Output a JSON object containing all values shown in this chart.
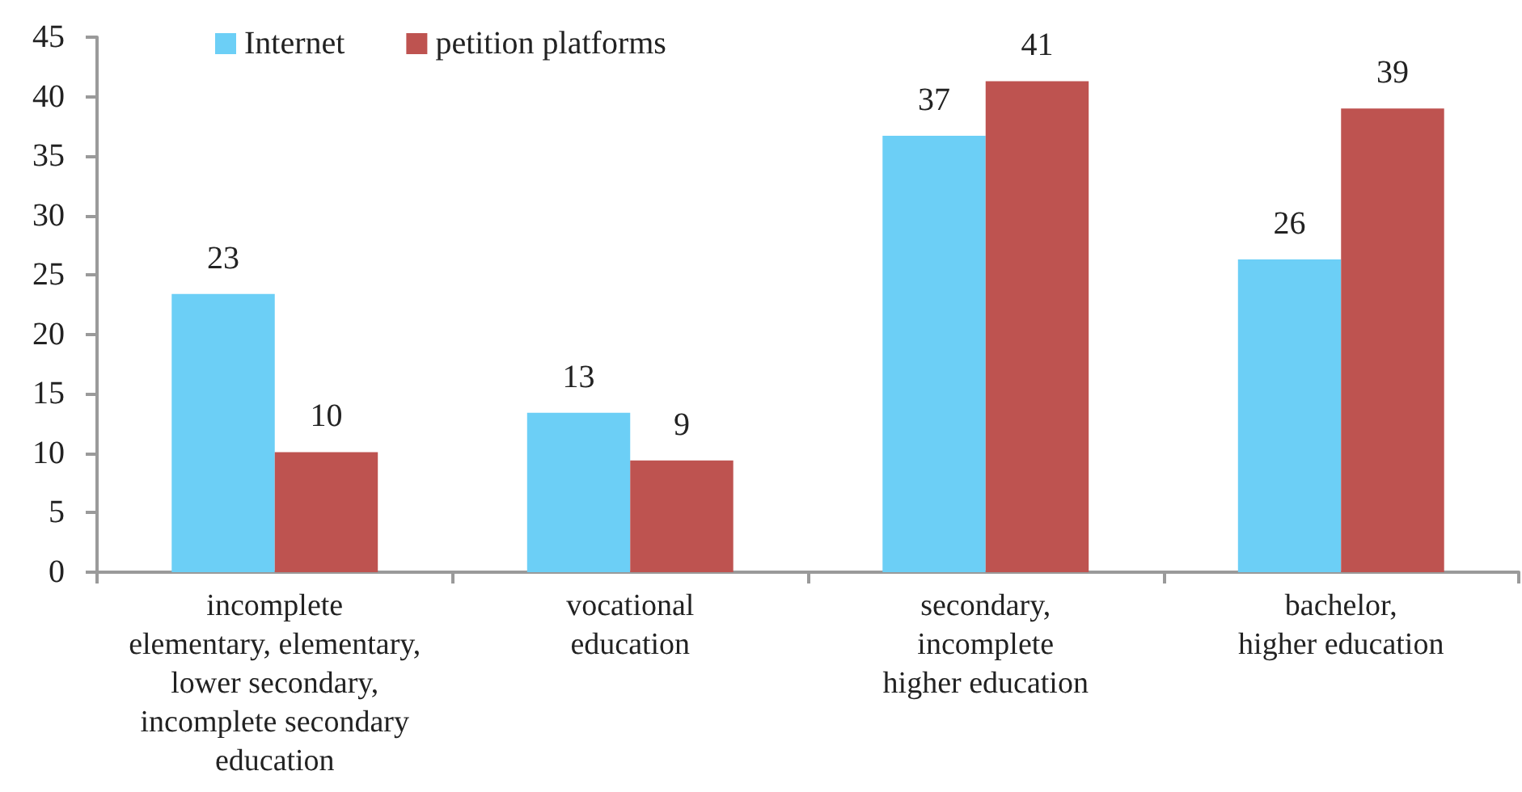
{
  "chart_data": {
    "type": "bar",
    "categories": [
      "incomplete\nelementary, elementary,\nlower secondary,\nincomplete secondary\neducation",
      "vocational\neducation",
      "secondary,\nincomplete\nhigher education",
      "bachelor,\nhigher education"
    ],
    "series": [
      {
        "name": "Internet",
        "color": "#6ccff6",
        "values": [
          23.4,
          13.4,
          36.7,
          26.3
        ],
        "value_labels": [
          "23",
          "13",
          "37",
          "26"
        ]
      },
      {
        "name": "petition platforms",
        "color": "#be5350",
        "values": [
          10.1,
          9.4,
          41.3,
          39.0
        ],
        "value_labels": [
          "10",
          "9",
          "41",
          "39"
        ]
      }
    ],
    "ylim": [
      0,
      45
    ],
    "yticks": [
      0,
      5,
      10,
      15,
      20,
      25,
      30,
      35,
      40,
      45
    ],
    "grid": false,
    "legend": "top left"
  }
}
